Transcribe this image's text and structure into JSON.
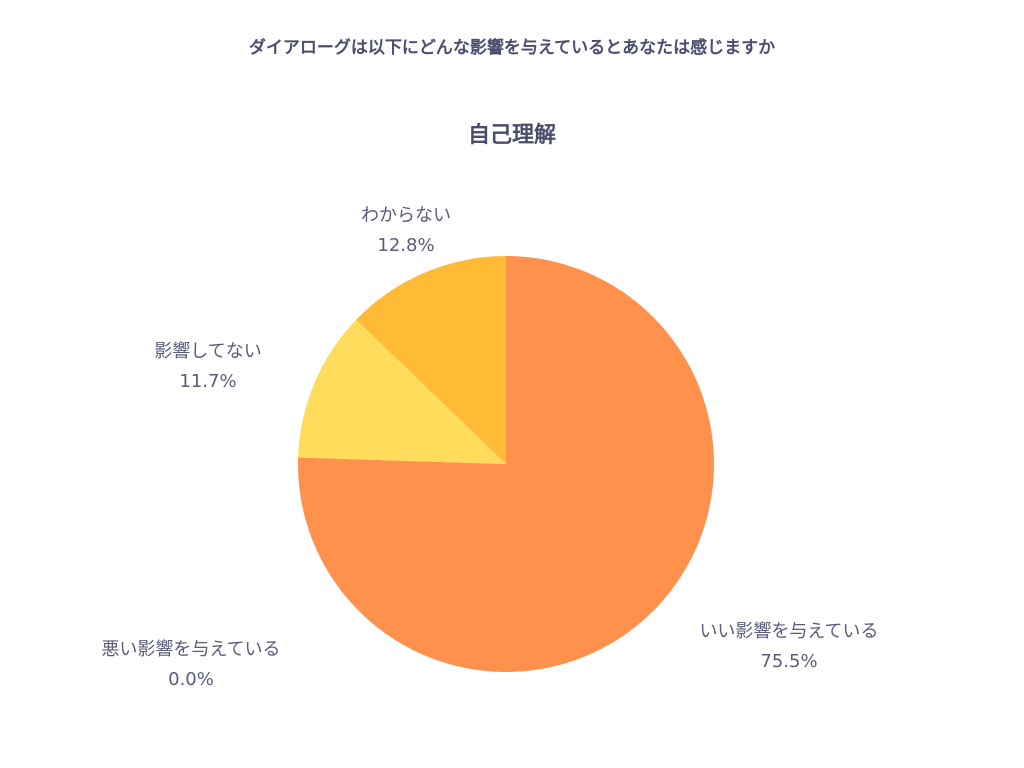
{
  "survey_question": "ダイアローグは以下にどんな影響を与えているとあなたは感じますか",
  "chart_data": {
    "type": "pie",
    "title": "自己理解",
    "slices": [
      {
        "label": "いい影響を与えている",
        "value": 75.5,
        "display": "75.5%",
        "color": "#ff914d"
      },
      {
        "label": "悪い影響を与えている",
        "value": 0.0,
        "display": "0.0%",
        "color": "#ff6b5b"
      },
      {
        "label": "影響してない",
        "value": 11.7,
        "display": "11.7%",
        "color": "#ffdc5c"
      },
      {
        "label": "わからない",
        "value": 12.8,
        "display": "12.8%",
        "color": "#ffbb36"
      }
    ],
    "start": "top",
    "direction": "clockwise"
  }
}
